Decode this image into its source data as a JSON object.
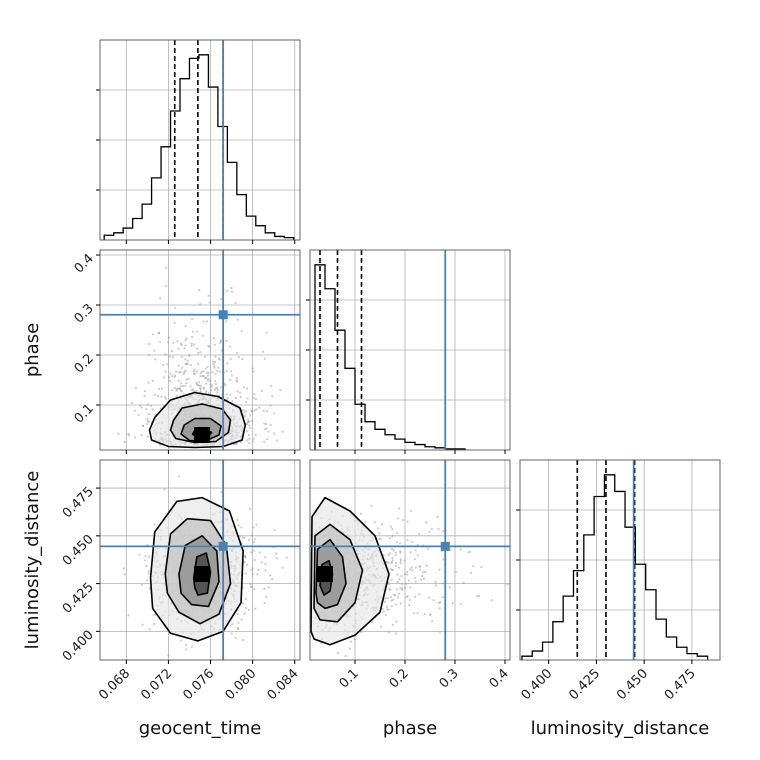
{
  "colors": {
    "truth": "#4682b4",
    "line": "#000000",
    "grid": "#b0b0b0",
    "scatter": "#8c8c8c"
  },
  "chart_data": {
    "type": "corner",
    "parameters": [
      {
        "name": "geocent_time",
        "label": "geocent_time",
        "range": [
          0.0655,
          0.0845
        ],
        "ticks": [
          0.068,
          0.072,
          0.076,
          0.08,
          0.084
        ],
        "tick_labels": [
          "0.068",
          "0.072",
          "0.076",
          "0.080",
          "0.084"
        ],
        "truth": 0.0772,
        "quantiles": [
          0.0726,
          0.0748,
          0.0772
        ]
      },
      {
        "name": "phase",
        "label": "phase",
        "range": [
          0.01,
          0.41
        ],
        "ticks": [
          0.1,
          0.2,
          0.3,
          0.4
        ],
        "tick_labels": [
          "0.1",
          "0.2",
          "0.3",
          "0.4"
        ],
        "truth": 0.2805,
        "quantiles": [
          0.03,
          0.065,
          0.113
        ]
      },
      {
        "name": "luminosity_distance",
        "label": "luminosity_distance",
        "range": [
          0.385,
          0.4897
        ],
        "ticks": [
          0.4,
          0.425,
          0.45,
          0.475
        ],
        "tick_labels": [
          "0.400",
          "0.425",
          "0.450",
          "0.475"
        ],
        "truth": 0.4445,
        "quantiles": [
          0.415,
          0.43,
          0.445
        ]
      }
    ],
    "histograms": [
      {
        "parameter": "geocent_time",
        "bin_edges": [
          0.0659,
          0.0668,
          0.0677,
          0.0686,
          0.0695,
          0.0704,
          0.0713,
          0.0722,
          0.0731,
          0.074,
          0.0749,
          0.0758,
          0.0767,
          0.0776,
          0.0785,
          0.0794,
          0.0803,
          0.0812,
          0.0821,
          0.083,
          0.0839
        ],
        "counts": [
          4,
          6,
          10,
          18,
          30,
          52,
          78,
          108,
          135,
          152,
          155,
          128,
          95,
          65,
          38,
          20,
          12,
          6,
          3,
          2
        ]
      },
      {
        "parameter": "phase",
        "bin_edges": [
          0.02,
          0.04,
          0.06,
          0.08,
          0.1,
          0.12,
          0.14,
          0.16,
          0.18,
          0.2,
          0.22,
          0.24,
          0.26,
          0.28,
          0.3,
          0.32
        ],
        "counts": [
          170,
          148,
          110,
          75,
          42,
          26,
          19,
          14,
          10,
          7,
          5,
          3,
          2,
          1,
          1
        ]
      },
      {
        "parameter": "luminosity_distance",
        "bin_edges": [
          0.386,
          0.3914,
          0.3968,
          0.4022,
          0.4076,
          0.413,
          0.4184,
          0.4238,
          0.4292,
          0.4346,
          0.44,
          0.4454,
          0.4508,
          0.4562,
          0.4616,
          0.467,
          0.4724,
          0.4778,
          0.4832
        ],
        "counts": [
          3,
          7,
          14,
          30,
          50,
          70,
          98,
          128,
          145,
          132,
          104,
          75,
          55,
          32,
          18,
          10,
          5,
          3
        ]
      }
    ],
    "pairs": [
      {
        "x": "geocent_time",
        "y": "phase",
        "mode": [
          0.0752,
          0.04
        ],
        "contours": [
          [
            [
              0.0707,
              0.075
            ],
            [
              0.0722,
              0.11
            ],
            [
              0.0745,
              0.125
            ],
            [
              0.0767,
              0.117
            ],
            [
              0.0788,
              0.094
            ],
            [
              0.0793,
              0.06
            ],
            [
              0.079,
              0.03
            ],
            [
              0.0772,
              0.017
            ],
            [
              0.0745,
              0.015
            ],
            [
              0.072,
              0.017
            ],
            [
              0.0704,
              0.03
            ],
            [
              0.0702,
              0.05
            ]
          ],
          [
            [
              0.0725,
              0.07
            ],
            [
              0.0733,
              0.094
            ],
            [
              0.0752,
              0.102
            ],
            [
              0.0771,
              0.092
            ],
            [
              0.0779,
              0.07
            ],
            [
              0.0777,
              0.045
            ],
            [
              0.0765,
              0.027
            ],
            [
              0.0745,
              0.025
            ],
            [
              0.0727,
              0.033
            ],
            [
              0.0722,
              0.05
            ]
          ],
          [
            [
              0.0735,
              0.06
            ],
            [
              0.0745,
              0.073
            ],
            [
              0.076,
              0.073
            ],
            [
              0.077,
              0.058
            ],
            [
              0.0768,
              0.04
            ],
            [
              0.0755,
              0.028
            ],
            [
              0.074,
              0.029
            ],
            [
              0.0732,
              0.042
            ]
          ],
          [
            [
              0.0745,
              0.049
            ],
            [
              0.0753,
              0.053
            ],
            [
              0.0761,
              0.045
            ],
            [
              0.0757,
              0.034
            ],
            [
              0.0747,
              0.034
            ],
            [
              0.0743,
              0.042
            ]
          ]
        ]
      },
      {
        "x": "geocent_time",
        "y": "luminosity_distance",
        "mode": [
          0.0752,
          0.43
        ],
        "contours": [
          [
            [
              0.0703,
              0.428
            ],
            [
              0.0707,
              0.452
            ],
            [
              0.0728,
              0.468
            ],
            [
              0.0752,
              0.47
            ],
            [
              0.0778,
              0.463
            ],
            [
              0.0791,
              0.442
            ],
            [
              0.0789,
              0.415
            ],
            [
              0.0772,
              0.4
            ],
            [
              0.0748,
              0.395
            ],
            [
              0.0722,
              0.399
            ],
            [
              0.0705,
              0.412
            ]
          ],
          [
            [
              0.0717,
              0.43
            ],
            [
              0.0722,
              0.451
            ],
            [
              0.0738,
              0.459
            ],
            [
              0.076,
              0.458
            ],
            [
              0.0775,
              0.445
            ],
            [
              0.0779,
              0.425
            ],
            [
              0.0768,
              0.409
            ],
            [
              0.075,
              0.404
            ],
            [
              0.073,
              0.41
            ],
            [
              0.0719,
              0.42
            ]
          ],
          [
            [
              0.073,
              0.43
            ],
            [
              0.0736,
              0.445
            ],
            [
              0.0752,
              0.45
            ],
            [
              0.0766,
              0.442
            ],
            [
              0.0768,
              0.426
            ],
            [
              0.0758,
              0.413
            ],
            [
              0.0742,
              0.414
            ],
            [
              0.0732,
              0.42
            ]
          ],
          [
            [
              0.0744,
              0.428
            ],
            [
              0.0747,
              0.439
            ],
            [
              0.0756,
              0.441
            ],
            [
              0.076,
              0.431
            ],
            [
              0.0757,
              0.42
            ],
            [
              0.0748,
              0.419
            ],
            [
              0.0745,
              0.423
            ]
          ]
        ]
      },
      {
        "x": "phase",
        "y": "luminosity_distance",
        "mode": [
          0.04,
          0.43
        ],
        "contours": [
          [
            [
              0.012,
              0.4
            ],
            [
              0.014,
              0.46
            ],
            [
              0.04,
              0.47
            ],
            [
              0.09,
              0.463
            ],
            [
              0.14,
              0.45
            ],
            [
              0.168,
              0.43
            ],
            [
              0.15,
              0.41
            ],
            [
              0.1,
              0.398
            ],
            [
              0.05,
              0.393
            ],
            [
              0.018,
              0.396
            ]
          ],
          [
            [
              0.018,
              0.412
            ],
            [
              0.02,
              0.45
            ],
            [
              0.05,
              0.456
            ],
            [
              0.09,
              0.448
            ],
            [
              0.115,
              0.432
            ],
            [
              0.1,
              0.415
            ],
            [
              0.065,
              0.405
            ],
            [
              0.03,
              0.406
            ]
          ],
          [
            [
              0.022,
              0.42
            ],
            [
              0.025,
              0.443
            ],
            [
              0.05,
              0.448
            ],
            [
              0.075,
              0.439
            ],
            [
              0.082,
              0.425
            ],
            [
              0.065,
              0.414
            ],
            [
              0.04,
              0.412
            ],
            [
              0.025,
              0.415
            ]
          ],
          [
            [
              0.03,
              0.424
            ],
            [
              0.034,
              0.435
            ],
            [
              0.048,
              0.437
            ],
            [
              0.055,
              0.43
            ],
            [
              0.05,
              0.421
            ],
            [
              0.038,
              0.419
            ]
          ]
        ]
      }
    ],
    "grid": true,
    "legend": "none"
  }
}
